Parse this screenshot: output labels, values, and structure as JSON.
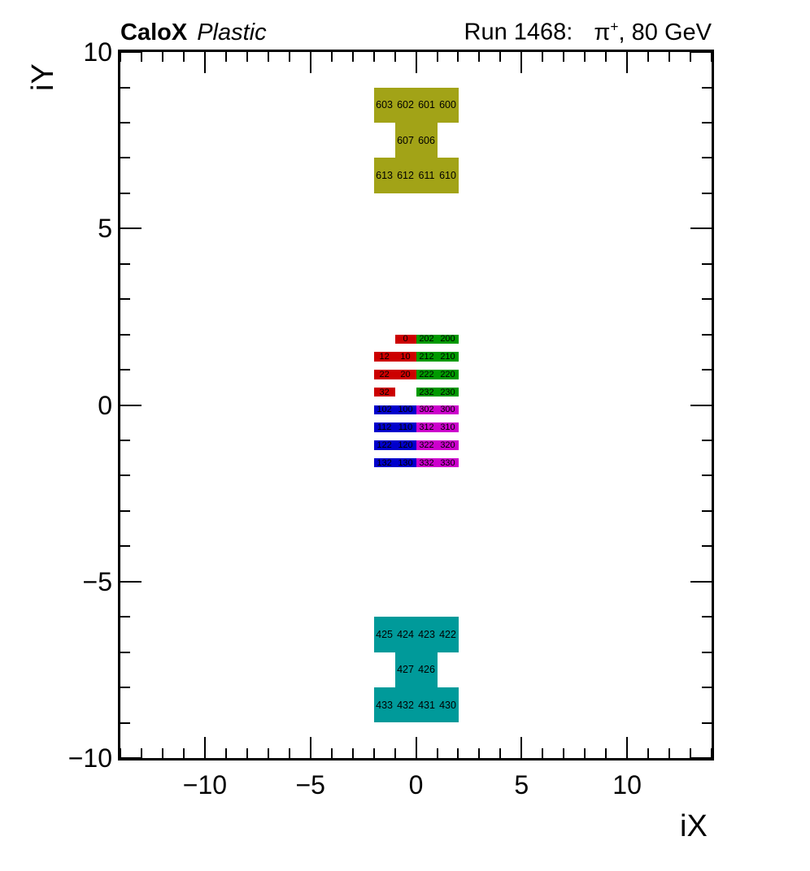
{
  "header": {
    "left_bold": "CaloX",
    "left_italic": "Plastic",
    "right_run": "Run 1468:",
    "particle_pi": "π",
    "particle_charge": "+",
    "particle_rest": ", 80 GeV"
  },
  "chart_data": {
    "type": "heatmap",
    "title": "CaloX Plastic — Run 1468: π+, 80 GeV",
    "xlabel": "iX",
    "ylabel": "iY",
    "xlim": [
      -14,
      14
    ],
    "ylim": [
      -10,
      10
    ],
    "x_major_ticks": [
      {
        "v": -10,
        "label": "−10"
      },
      {
        "v": -5,
        "label": "−5"
      },
      {
        "v": 0,
        "label": "0"
      },
      {
        "v": 5,
        "label": "5"
      },
      {
        "v": 10,
        "label": "10"
      }
    ],
    "y_major_ticks": [
      {
        "v": -10,
        "label": "−10"
      },
      {
        "v": -5,
        "label": "−5"
      },
      {
        "v": 0,
        "label": "0"
      },
      {
        "v": 5,
        "label": "5"
      },
      {
        "v": 10,
        "label": "10"
      }
    ],
    "minor_tick_step": 1,
    "grid": false,
    "legend": "none",
    "colors": {
      "olive": "#a2a317",
      "teal": "#009a9a",
      "red": "#cc0000",
      "green": "#009900",
      "blue": "#0000cc",
      "magenta": "#cc00cc"
    },
    "cells": [
      {
        "id": "603",
        "x": [
          -2,
          -1
        ],
        "y": [
          8,
          9
        ],
        "c": "olive"
      },
      {
        "id": "602",
        "x": [
          -1,
          0
        ],
        "y": [
          8,
          9
        ],
        "c": "olive"
      },
      {
        "id": "601",
        "x": [
          0,
          1
        ],
        "y": [
          8,
          9
        ],
        "c": "olive"
      },
      {
        "id": "600",
        "x": [
          1,
          2
        ],
        "y": [
          8,
          9
        ],
        "c": "olive"
      },
      {
        "id": "607",
        "x": [
          -1,
          0
        ],
        "y": [
          7,
          8
        ],
        "c": "olive"
      },
      {
        "id": "606",
        "x": [
          0,
          1
        ],
        "y": [
          7,
          8
        ],
        "c": "olive"
      },
      {
        "id": "613",
        "x": [
          -2,
          -1
        ],
        "y": [
          6,
          7
        ],
        "c": "olive"
      },
      {
        "id": "612",
        "x": [
          -1,
          0
        ],
        "y": [
          6,
          7
        ],
        "c": "olive"
      },
      {
        "id": "611",
        "x": [
          0,
          1
        ],
        "y": [
          6,
          7
        ],
        "c": "olive"
      },
      {
        "id": "610",
        "x": [
          1,
          2
        ],
        "y": [
          6,
          7
        ],
        "c": "olive"
      },
      {
        "id": "0",
        "x": [
          -1,
          0
        ],
        "y": [
          1.73,
          2.0
        ],
        "c": "red"
      },
      {
        "id": "202",
        "x": [
          0,
          1
        ],
        "y": [
          1.73,
          2.0
        ],
        "c": "green"
      },
      {
        "id": "200",
        "x": [
          1,
          2
        ],
        "y": [
          1.73,
          2.0
        ],
        "c": "green"
      },
      {
        "id": "12",
        "x": [
          -2,
          -1
        ],
        "y": [
          1.23,
          1.5
        ],
        "c": "red"
      },
      {
        "id": "10",
        "x": [
          -1,
          0
        ],
        "y": [
          1.23,
          1.5
        ],
        "c": "red"
      },
      {
        "id": "212",
        "x": [
          0,
          1
        ],
        "y": [
          1.23,
          1.5
        ],
        "c": "green"
      },
      {
        "id": "210",
        "x": [
          1,
          2
        ],
        "y": [
          1.23,
          1.5
        ],
        "c": "green"
      },
      {
        "id": "22",
        "x": [
          -2,
          -1
        ],
        "y": [
          0.73,
          1.0
        ],
        "c": "red"
      },
      {
        "id": "20",
        "x": [
          -1,
          0
        ],
        "y": [
          0.73,
          1.0
        ],
        "c": "red"
      },
      {
        "id": "222",
        "x": [
          0,
          1
        ],
        "y": [
          0.73,
          1.0
        ],
        "c": "green"
      },
      {
        "id": "220",
        "x": [
          1,
          2
        ],
        "y": [
          0.73,
          1.0
        ],
        "c": "green"
      },
      {
        "id": "32",
        "x": [
          -2,
          -1
        ],
        "y": [
          0.23,
          0.5
        ],
        "c": "red"
      },
      {
        "id": "232",
        "x": [
          0,
          1
        ],
        "y": [
          0.23,
          0.5
        ],
        "c": "green"
      },
      {
        "id": "230",
        "x": [
          1,
          2
        ],
        "y": [
          0.23,
          0.5
        ],
        "c": "green"
      },
      {
        "id": "102",
        "x": [
          -2,
          -1
        ],
        "y": [
          -0.27,
          0.0
        ],
        "c": "blue"
      },
      {
        "id": "100",
        "x": [
          -1,
          0
        ],
        "y": [
          -0.27,
          0.0
        ],
        "c": "blue"
      },
      {
        "id": "302",
        "x": [
          0,
          1
        ],
        "y": [
          -0.27,
          0.0
        ],
        "c": "magenta"
      },
      {
        "id": "300",
        "x": [
          1,
          2
        ],
        "y": [
          -0.27,
          0.0
        ],
        "c": "magenta"
      },
      {
        "id": "112",
        "x": [
          -2,
          -1
        ],
        "y": [
          -0.77,
          -0.5
        ],
        "c": "blue"
      },
      {
        "id": "110",
        "x": [
          -1,
          0
        ],
        "y": [
          -0.77,
          -0.5
        ],
        "c": "blue"
      },
      {
        "id": "312",
        "x": [
          0,
          1
        ],
        "y": [
          -0.77,
          -0.5
        ],
        "c": "magenta"
      },
      {
        "id": "310",
        "x": [
          1,
          2
        ],
        "y": [
          -0.77,
          -0.5
        ],
        "c": "magenta"
      },
      {
        "id": "122",
        "x": [
          -2,
          -1
        ],
        "y": [
          -1.27,
          -1.0
        ],
        "c": "blue"
      },
      {
        "id": "120",
        "x": [
          -1,
          0
        ],
        "y": [
          -1.27,
          -1.0
        ],
        "c": "blue"
      },
      {
        "id": "322",
        "x": [
          0,
          1
        ],
        "y": [
          -1.27,
          -1.0
        ],
        "c": "magenta"
      },
      {
        "id": "320",
        "x": [
          1,
          2
        ],
        "y": [
          -1.27,
          -1.0
        ],
        "c": "magenta"
      },
      {
        "id": "132",
        "x": [
          -2,
          -1
        ],
        "y": [
          -1.77,
          -1.5
        ],
        "c": "blue"
      },
      {
        "id": "130",
        "x": [
          -1,
          0
        ],
        "y": [
          -1.77,
          -1.5
        ],
        "c": "blue"
      },
      {
        "id": "332",
        "x": [
          0,
          1
        ],
        "y": [
          -1.77,
          -1.5
        ],
        "c": "magenta"
      },
      {
        "id": "330",
        "x": [
          1,
          2
        ],
        "y": [
          -1.77,
          -1.5
        ],
        "c": "magenta"
      },
      {
        "id": "425",
        "x": [
          -2,
          -1
        ],
        "y": [
          -7,
          -6
        ],
        "c": "teal"
      },
      {
        "id": "424",
        "x": [
          -1,
          0
        ],
        "y": [
          -7,
          -6
        ],
        "c": "teal"
      },
      {
        "id": "423",
        "x": [
          0,
          1
        ],
        "y": [
          -7,
          -6
        ],
        "c": "teal"
      },
      {
        "id": "422",
        "x": [
          1,
          2
        ],
        "y": [
          -7,
          -6
        ],
        "c": "teal"
      },
      {
        "id": "427",
        "x": [
          -1,
          0
        ],
        "y": [
          -8,
          -7
        ],
        "c": "teal"
      },
      {
        "id": "426",
        "x": [
          0,
          1
        ],
        "y": [
          -8,
          -7
        ],
        "c": "teal"
      },
      {
        "id": "433",
        "x": [
          -2,
          -1
        ],
        "y": [
          -9,
          -8
        ],
        "c": "teal"
      },
      {
        "id": "432",
        "x": [
          -1,
          0
        ],
        "y": [
          -9,
          -8
        ],
        "c": "teal"
      },
      {
        "id": "431",
        "x": [
          0,
          1
        ],
        "y": [
          -9,
          -8
        ],
        "c": "teal"
      },
      {
        "id": "430",
        "x": [
          1,
          2
        ],
        "y": [
          -9,
          -8
        ],
        "c": "teal"
      }
    ]
  }
}
